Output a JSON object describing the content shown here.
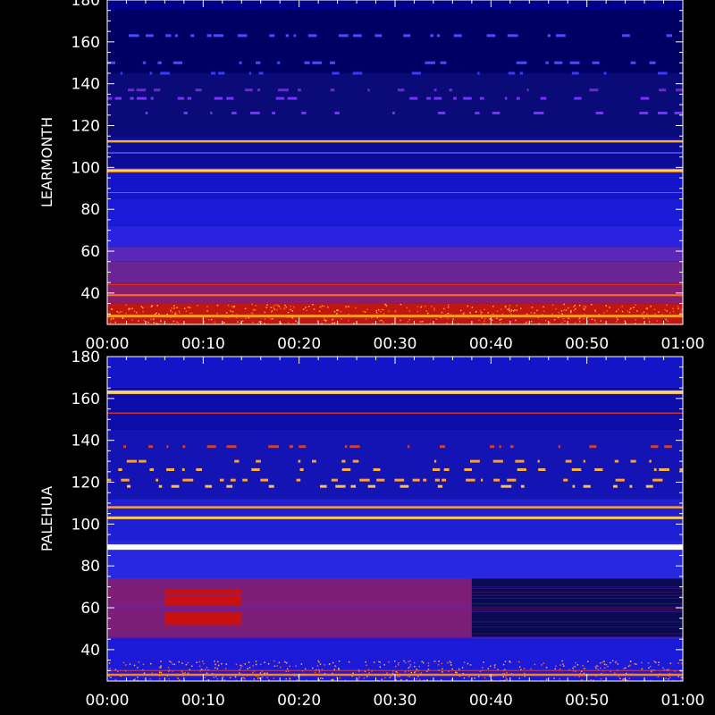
{
  "chart_data": [
    {
      "type": "heatmap",
      "station": "LEARMONTH",
      "ylabel": "LEARMONTH",
      "xlim": [
        "00:00",
        "01:00"
      ],
      "ylim": [
        25,
        180
      ],
      "x_ticks": [
        "00:00",
        "00:10",
        "00:20",
        "00:30",
        "00:40",
        "00:50",
        "01:00"
      ],
      "y_ticks": [
        40,
        60,
        80,
        100,
        120,
        140,
        160,
        180
      ],
      "background_bands": [
        {
          "y0": 175,
          "y1": 180,
          "color": "#00008a"
        },
        {
          "y0": 145,
          "y1": 175,
          "color": "#000064"
        },
        {
          "y0": 115,
          "y1": 145,
          "color": "#0a0a78"
        },
        {
          "y0": 100,
          "y1": 115,
          "color": "#0c0c96"
        },
        {
          "y0": 85,
          "y1": 100,
          "color": "#1414c8"
        },
        {
          "y0": 72,
          "y1": 85,
          "color": "#1a1ad8"
        },
        {
          "y0": 62,
          "y1": 72,
          "color": "#2a22e0"
        },
        {
          "y0": 55,
          "y1": 62,
          "color": "#5a28b8"
        },
        {
          "y0": 45,
          "y1": 55,
          "color": "#6a2494"
        },
        {
          "y0": 35,
          "y1": 45,
          "color": "#8a1e6e"
        },
        {
          "y0": 25,
          "y1": 35,
          "color": "#c01810"
        }
      ],
      "persistent_lines": [
        {
          "y": 112.5,
          "color": "#ffb030",
          "width": 2.5
        },
        {
          "y": 107,
          "color": "#5858ff",
          "width": 1.5
        },
        {
          "y": 98.5,
          "color": "#ff8c10",
          "width": 4
        },
        {
          "y": 98.5,
          "color": "#ffe060",
          "width": 1.5
        },
        {
          "y": 88,
          "color": "#5a5aff",
          "width": 1
        },
        {
          "y": 39,
          "color": "#ff7020",
          "width": 2
        },
        {
          "y": 44,
          "color": "#d03030",
          "width": 1
        },
        {
          "y": 29,
          "color": "#ff9a20",
          "width": 3
        }
      ],
      "intermittent_rows": [
        {
          "y": 163,
          "color": "#4a4aff"
        },
        {
          "y": 150,
          "color": "#4a4aff"
        },
        {
          "y": 145,
          "color": "#3a3aff"
        },
        {
          "y": 137,
          "color": "#6a2ad0"
        },
        {
          "y": 133,
          "color": "#7a30ff"
        },
        {
          "y": 126,
          "color": "#7a30ff"
        }
      ]
    },
    {
      "type": "heatmap",
      "station": "PALEHUA",
      "ylabel": "PALEHUA",
      "xlim": [
        "00:00",
        "01:00"
      ],
      "ylim": [
        25,
        180
      ],
      "x_ticks": [
        "00:00",
        "00:10",
        "00:20",
        "00:30",
        "00:40",
        "00:50",
        "01:00"
      ],
      "y_ticks": [
        40,
        60,
        80,
        100,
        120,
        140,
        160,
        180
      ],
      "background_bands": [
        {
          "y0": 165,
          "y1": 180,
          "color": "#1414c8"
        },
        {
          "y0": 145,
          "y1": 165,
          "color": "#0c0ca8"
        },
        {
          "y0": 112,
          "y1": 145,
          "color": "#1414b4"
        },
        {
          "y0": 92,
          "y1": 112,
          "color": "#1e1ed4"
        },
        {
          "y0": 74,
          "y1": 92,
          "color": "#2828e0"
        },
        {
          "y0": 45,
          "y1": 74,
          "color": "#3020c8"
        },
        {
          "y0": 25,
          "y1": 45,
          "color": "#1a1ad8"
        }
      ],
      "persistent_lines": [
        {
          "y": 163,
          "color": "#ffd060",
          "width": 4
        },
        {
          "y": 153,
          "color": "#c83030",
          "width": 1.5
        },
        {
          "y": 108,
          "color": "#ffa030",
          "width": 2.5
        },
        {
          "y": 103,
          "color": "#ffc850",
          "width": 3
        },
        {
          "y": 89,
          "color": "#ffffff",
          "width": 6
        },
        {
          "y": 28,
          "color": "#ff8020",
          "width": 2.5
        },
        {
          "y": 30,
          "color": "#d04040",
          "width": 1
        }
      ],
      "intermittent_rows": [
        {
          "y": 137,
          "color": "#d04030"
        },
        {
          "y": 130,
          "color": "#ffa020"
        },
        {
          "y": 126,
          "color": "#ffb040"
        },
        {
          "y": 121,
          "color": "#ffa030"
        },
        {
          "y": 118,
          "color": "#ffc040"
        }
      ],
      "regions": [
        {
          "x0": 0,
          "x1": 38,
          "y0": 46,
          "y1": 74,
          "color": "#7a1e7a"
        },
        {
          "x0": 6,
          "x1": 14,
          "y0": 61,
          "y1": 69,
          "color": "#c81010"
        },
        {
          "x0": 6,
          "x1": 14,
          "y0": 52,
          "y1": 58,
          "color": "#c81010"
        },
        {
          "x0": 38,
          "x1": 60,
          "y0": 46,
          "y1": 74,
          "color": "#0a0a50"
        }
      ]
    }
  ]
}
